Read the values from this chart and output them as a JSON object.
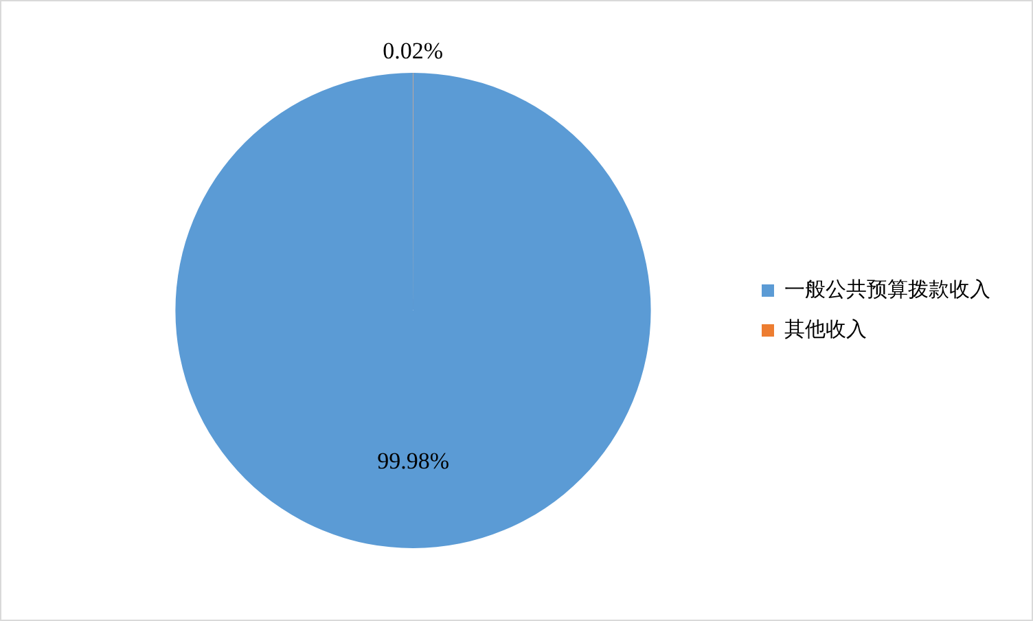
{
  "chart_data": {
    "type": "pie",
    "categories": [
      "一般公共预算拨款收入",
      "其他收入"
    ],
    "values": [
      99.98,
      0.02
    ],
    "colors": [
      "#5b9bd5",
      "#ed7d31"
    ],
    "value_labels": [
      "99.98%",
      "0.02%"
    ],
    "legend": "right"
  }
}
